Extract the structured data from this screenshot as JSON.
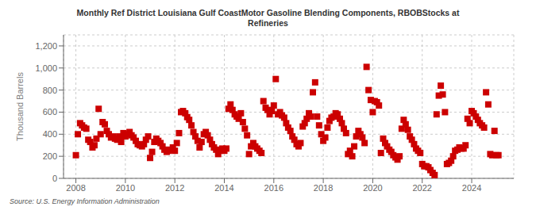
{
  "chart_data": {
    "type": "scatter",
    "title": "Monthly Ref District Louisiana Gulf CoastMotor Gasoline Blending Components, RBOBStocks at",
    "subtitle": "Refineries",
    "ylabel": "Thousand Barrels",
    "source": "Source: U.S. Energy Information Administration",
    "color": "#cc0000",
    "marker": "square",
    "grid": true,
    "xlim": [
      2007.5,
      2025.7
    ],
    "ylim": [
      0,
      1300
    ],
    "xticks": [
      2008,
      2010,
      2012,
      2014,
      2016,
      2018,
      2020,
      2022,
      2024
    ],
    "yticks": [
      0,
      200,
      400,
      600,
      800,
      {
        "value": 1000,
        "label": "1,000"
      },
      {
        "value": 1200,
        "label": "1,200"
      }
    ],
    "x": [
      2008.0,
      2008.08,
      2008.17,
      2008.25,
      2008.33,
      2008.42,
      2008.5,
      2008.58,
      2008.67,
      2008.75,
      2008.83,
      2008.92,
      2009.0,
      2009.08,
      2009.17,
      2009.25,
      2009.33,
      2009.42,
      2009.5,
      2009.58,
      2009.67,
      2009.75,
      2009.83,
      2009.92,
      2010.0,
      2010.08,
      2010.17,
      2010.25,
      2010.33,
      2010.42,
      2010.5,
      2010.58,
      2010.67,
      2010.75,
      2010.83,
      2010.92,
      2011.0,
      2011.08,
      2011.17,
      2011.25,
      2011.33,
      2011.42,
      2011.5,
      2011.58,
      2011.67,
      2011.75,
      2011.83,
      2011.92,
      2012.0,
      2012.08,
      2012.17,
      2012.25,
      2012.33,
      2012.42,
      2012.5,
      2012.58,
      2012.67,
      2012.75,
      2012.83,
      2012.92,
      2013.0,
      2013.08,
      2013.17,
      2013.25,
      2013.33,
      2013.42,
      2013.5,
      2013.58,
      2013.67,
      2013.75,
      2013.83,
      2013.92,
      2014.0,
      2014.08,
      2014.17,
      2014.25,
      2014.33,
      2014.42,
      2014.5,
      2014.58,
      2014.67,
      2014.75,
      2014.83,
      2014.92,
      2015.0,
      2015.08,
      2015.17,
      2015.25,
      2015.33,
      2015.42,
      2015.5,
      2015.58,
      2015.67,
      2015.75,
      2015.83,
      2015.92,
      2016.0,
      2016.08,
      2016.17,
      2016.25,
      2016.33,
      2016.42,
      2016.5,
      2016.58,
      2016.67,
      2016.75,
      2016.83,
      2016.92,
      2017.0,
      2017.08,
      2017.17,
      2017.25,
      2017.33,
      2017.42,
      2017.5,
      2017.58,
      2017.67,
      2017.75,
      2017.83,
      2017.92,
      2018.0,
      2018.08,
      2018.17,
      2018.25,
      2018.33,
      2018.42,
      2018.5,
      2018.58,
      2018.67,
      2018.75,
      2018.83,
      2018.92,
      2019.0,
      2019.08,
      2019.17,
      2019.25,
      2019.33,
      2019.42,
      2019.5,
      2019.58,
      2019.67,
      2019.75,
      2019.83,
      2019.92,
      2020.0,
      2020.08,
      2020.17,
      2020.25,
      2020.33,
      2020.42,
      2020.5,
      2020.58,
      2020.67,
      2020.75,
      2020.83,
      2020.92,
      2021.0,
      2021.08,
      2021.17,
      2021.25,
      2021.33,
      2021.42,
      2021.5,
      2021.58,
      2021.67,
      2021.75,
      2021.83,
      2021.92,
      2022.0,
      2022.08,
      2022.17,
      2022.25,
      2022.33,
      2022.42,
      2022.5,
      2022.58,
      2022.67,
      2022.75,
      2022.83,
      2022.92,
      2023.0,
      2023.08,
      2023.17,
      2023.25,
      2023.33,
      2023.42,
      2023.5,
      2023.58,
      2023.67,
      2023.75,
      2023.83,
      2023.92,
      2024.0,
      2024.08,
      2024.17,
      2024.25,
      2024.33,
      2024.42,
      2024.5,
      2024.58,
      2024.67,
      2024.75,
      2024.83,
      2024.92,
      2025.0,
      2025.08
    ],
    "values": [
      210,
      400,
      500,
      480,
      460,
      450,
      350,
      330,
      280,
      300,
      360,
      630,
      400,
      510,
      490,
      430,
      400,
      370,
      380,
      360,
      350,
      380,
      330,
      410,
      380,
      400,
      420,
      390,
      370,
      340,
      310,
      300,
      290,
      310,
      350,
      380,
      185,
      240,
      330,
      360,
      340,
      320,
      290,
      260,
      240,
      250,
      260,
      280,
      250,
      320,
      410,
      600,
      610,
      590,
      555,
      530,
      480,
      420,
      380,
      340,
      280,
      330,
      400,
      420,
      390,
      350,
      310,
      280,
      260,
      220,
      250,
      270,
      250,
      270,
      630,
      670,
      620,
      580,
      560,
      540,
      590,
      510,
      450,
      390,
      220,
      290,
      320,
      290,
      270,
      250,
      230,
      700,
      640,
      620,
      580,
      610,
      660,
      900,
      580,
      600,
      570,
      550,
      500,
      460,
      430,
      380,
      350,
      310,
      290,
      320,
      470,
      500,
      540,
      590,
      560,
      780,
      870,
      560,
      480,
      400,
      340,
      370,
      460,
      520,
      550,
      560,
      590,
      580,
      540,
      500,
      450,
      410,
      220,
      250,
      200,
      290,
      380,
      430,
      400,
      370,
      320,
      1010,
      800,
      710,
      600,
      700,
      690,
      660,
      230,
      360,
      320,
      290,
      260,
      240,
      210,
      190,
      170,
      200,
      450,
      530,
      490,
      440,
      380,
      350,
      310,
      270,
      250,
      230,
      130,
      110,
      110,
      100,
      75,
      50,
      30,
      580,
      750,
      840,
      760,
      600,
      130,
      140,
      160,
      200,
      250,
      260,
      280,
      270,
      270,
      300,
      540,
      500,
      610,
      590,
      560,
      530,
      500,
      480,
      460,
      780,
      670,
      220,
      210,
      430,
      210,
      210
    ]
  }
}
